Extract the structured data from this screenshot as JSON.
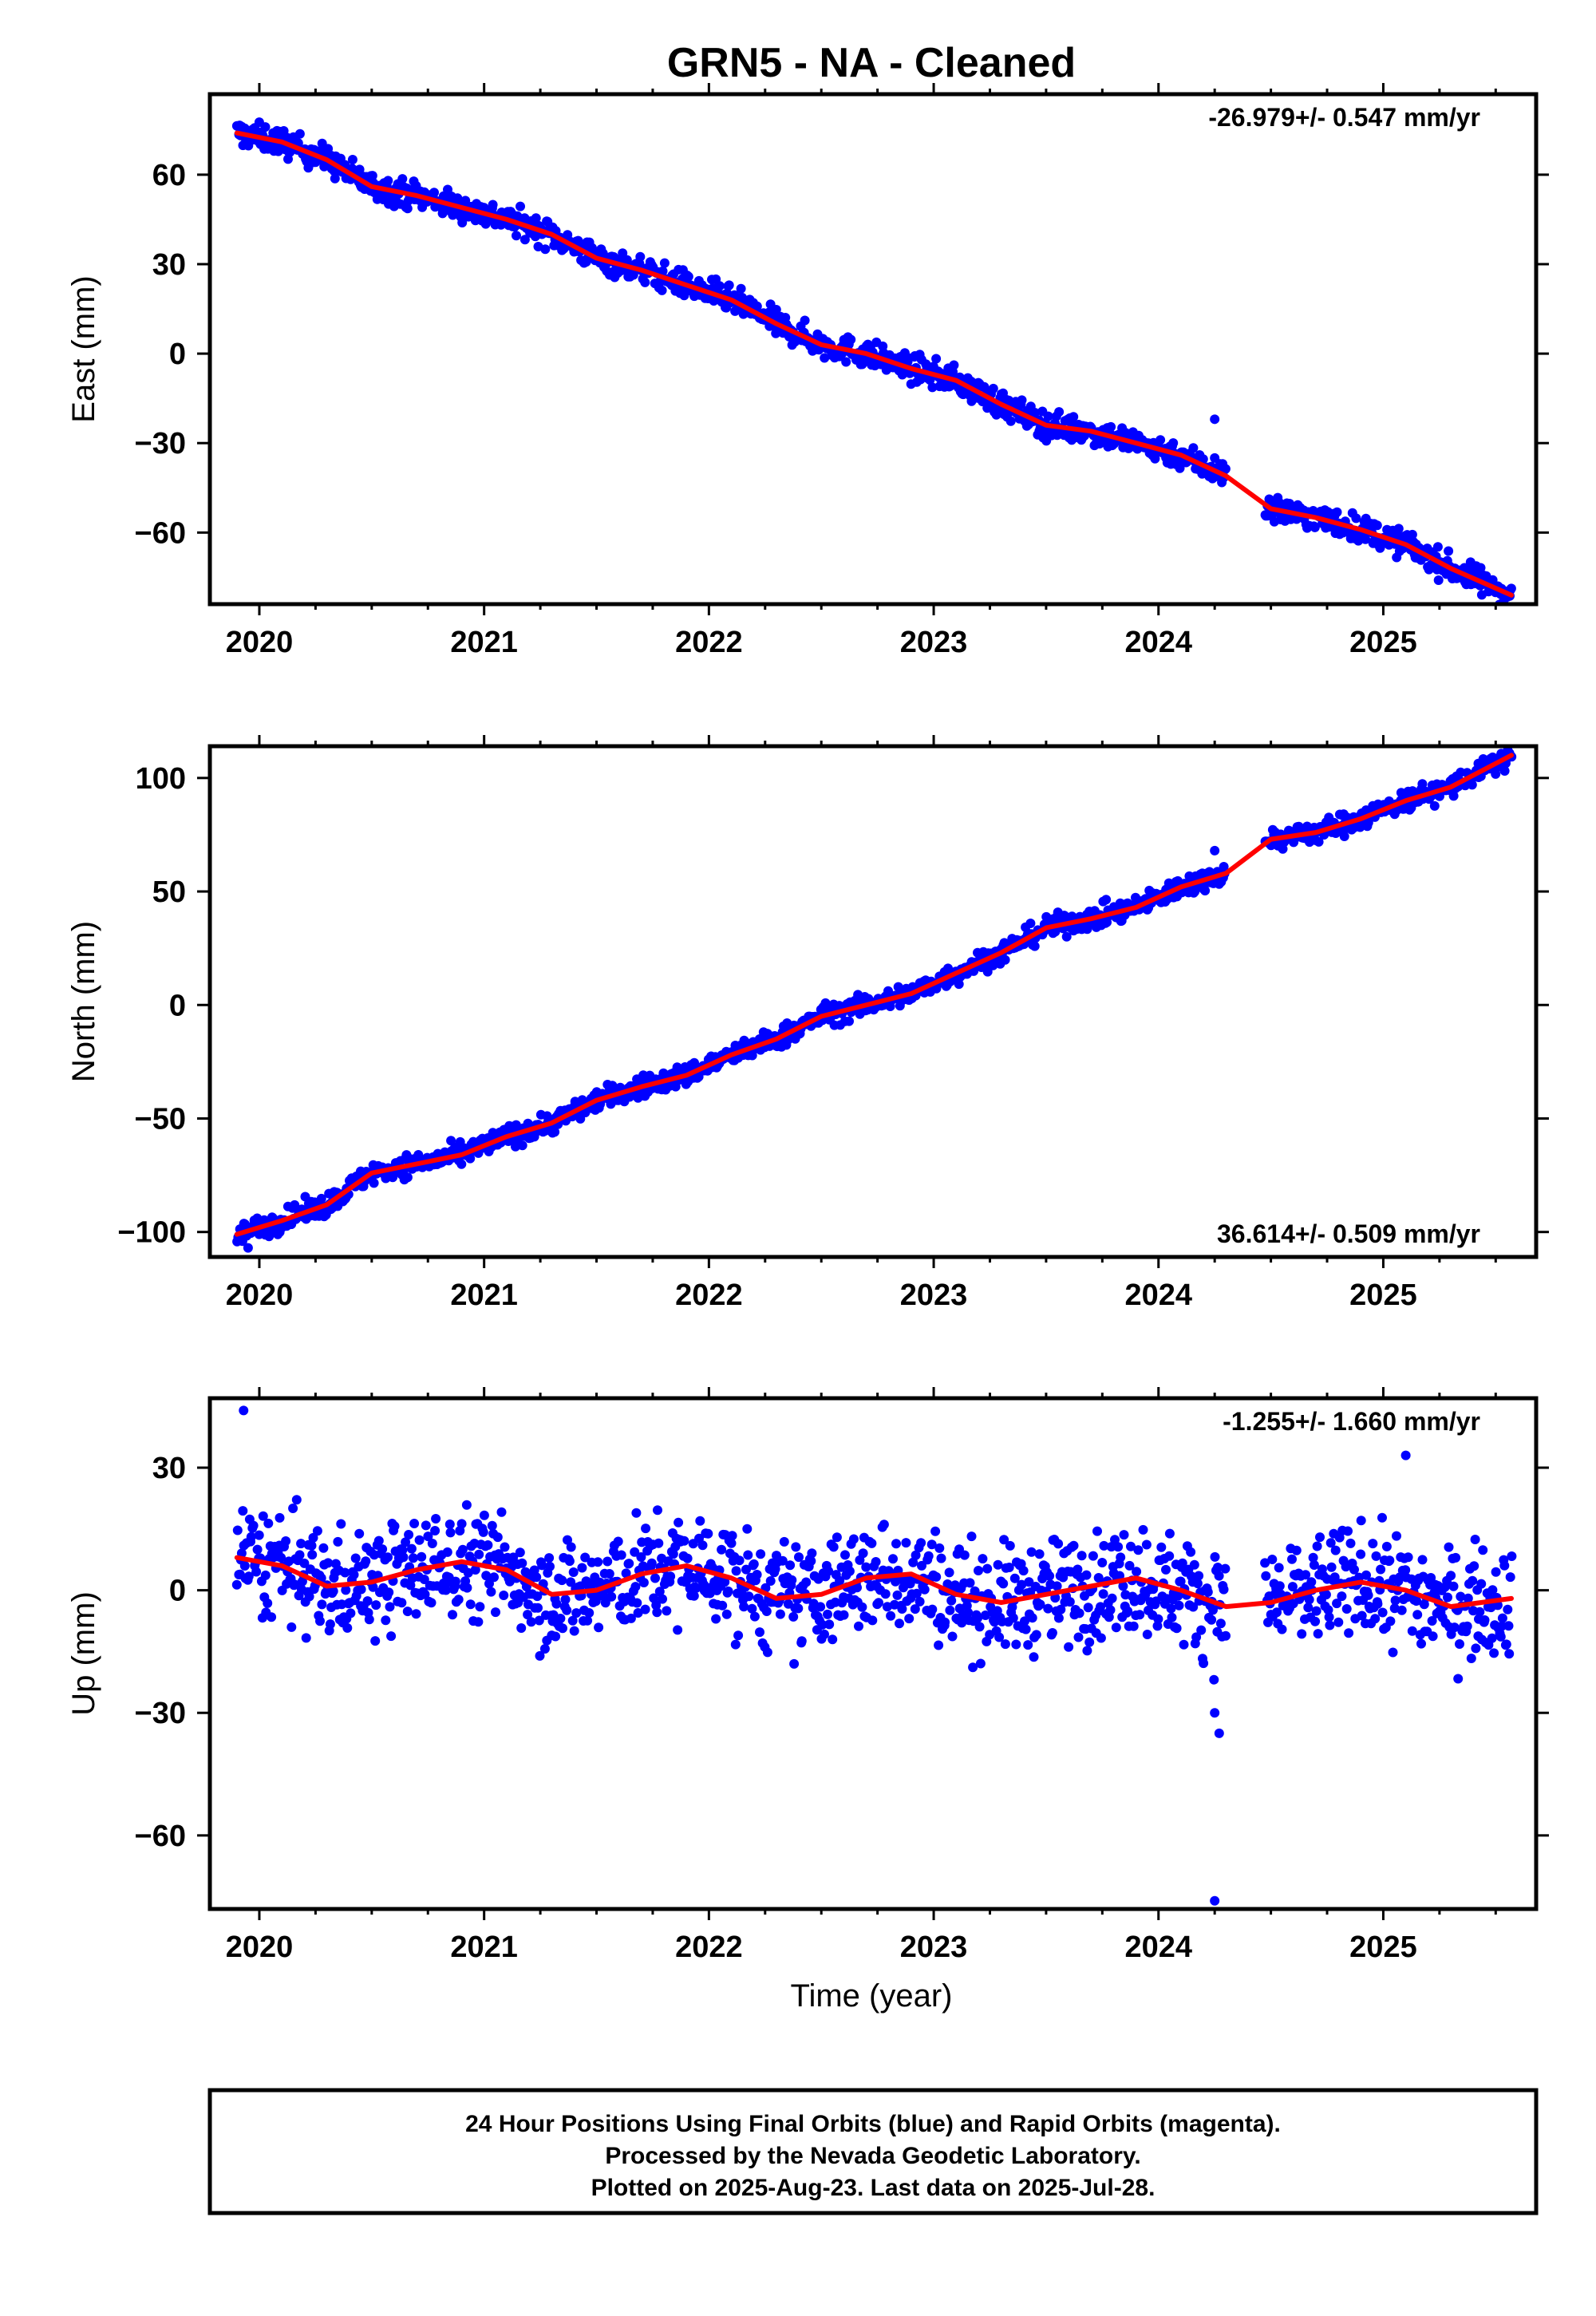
{
  "title": "GRN5  - NA - Cleaned",
  "xlabel": "Time (year)",
  "colors": {
    "points": "#0000ff",
    "trend": "#ff0000",
    "frame": "#000000"
  },
  "chart_data": [
    {
      "type": "scatter",
      "name": "east",
      "ylabel": "East (mm)",
      "rate_label": "-26.979+/- 0.547 mm/yr",
      "rate_position": "top-right",
      "xlim": [
        2019.78,
        2025.68
      ],
      "ylim": [
        -84,
        87
      ],
      "x_ticks": [
        "2020",
        "2021",
        "2022",
        "2023",
        "2024",
        "2025"
      ],
      "y_ticks": [
        60,
        30,
        0,
        -30,
        -60
      ],
      "y_tick_labels": [
        "60",
        "30",
        "0",
        "−30",
        "−60"
      ],
      "trend": {
        "x": [
          2019.9,
          2020.1,
          2020.3,
          2020.5,
          2020.7,
          2020.9,
          2021.1,
          2021.3,
          2021.5,
          2021.7,
          2021.9,
          2022.1,
          2022.3,
          2022.5,
          2022.7,
          2022.9,
          2023.1,
          2023.3,
          2023.5,
          2023.7,
          2023.9,
          2024.1,
          2024.3,
          2024.5,
          2024.7,
          2024.9,
          2025.1,
          2025.3,
          2025.57
        ],
        "y": [
          74,
          71,
          65,
          56,
          53,
          49,
          45,
          40,
          32,
          28,
          23,
          18,
          10,
          3,
          0,
          -5,
          -9,
          -17,
          -24,
          -26,
          -30,
          -34,
          -41,
          -52,
          -55,
          -59,
          -64,
          -72,
          -81
        ]
      },
      "scatter": {
        "x0": 2019.9,
        "x1": 2025.57,
        "spread": 3.2,
        "outliers": [
          [
            2024.25,
            -22
          ],
          [
            2024.25,
            -35
          ]
        ]
      }
    },
    {
      "type": "scatter",
      "name": "north",
      "ylabel": "North (mm)",
      "rate_label": "36.614+/- 0.509 mm/yr",
      "rate_position": "bottom-right",
      "xlim": [
        2019.78,
        2025.68
      ],
      "ylim": [
        -111,
        114
      ],
      "x_ticks": [
        "2020",
        "2021",
        "2022",
        "2023",
        "2024",
        "2025"
      ],
      "y_ticks": [
        100,
        50,
        0,
        -50,
        -100
      ],
      "y_tick_labels": [
        "100",
        "50",
        "0",
        "−50",
        "−100"
      ],
      "trend": {
        "x": [
          2019.9,
          2020.1,
          2020.3,
          2020.5,
          2020.7,
          2020.9,
          2021.1,
          2021.3,
          2021.5,
          2021.7,
          2021.9,
          2022.1,
          2022.3,
          2022.5,
          2022.7,
          2022.9,
          2023.1,
          2023.3,
          2023.5,
          2023.7,
          2023.9,
          2024.1,
          2024.3,
          2024.5,
          2024.7,
          2024.9,
          2025.1,
          2025.3,
          2025.57
        ],
        "y": [
          -101,
          -95,
          -88,
          -74,
          -70,
          -66,
          -58,
          -52,
          -42,
          -36,
          -31,
          -22,
          -15,
          -5,
          0,
          5,
          14,
          23,
          34,
          38,
          43,
          52,
          58,
          73,
          76,
          82,
          90,
          96,
          110
        ]
      },
      "scatter": {
        "x0": 2019.9,
        "x1": 2025.57,
        "spread": 3.4,
        "outliers": [
          [
            2024.25,
            68
          ],
          [
            2019.95,
            -107
          ]
        ]
      }
    },
    {
      "type": "scatter",
      "name": "up",
      "ylabel": "Up (mm)",
      "rate_label": "-1.255+/- 1.660 mm/yr",
      "rate_position": "top-right",
      "xlim": [
        2019.78,
        2025.68
      ],
      "ylim": [
        -78,
        47
      ],
      "x_ticks": [
        "2020",
        "2021",
        "2022",
        "2023",
        "2024",
        "2025"
      ],
      "y_ticks": [
        30,
        0,
        -30,
        -60
      ],
      "y_tick_labels": [
        "30",
        "0",
        "−30",
        "−60"
      ],
      "trend": {
        "x": [
          2019.9,
          2020.1,
          2020.3,
          2020.5,
          2020.7,
          2020.9,
          2021.1,
          2021.3,
          2021.5,
          2021.7,
          2021.9,
          2022.1,
          2022.3,
          2022.5,
          2022.7,
          2022.9,
          2023.1,
          2023.3,
          2023.5,
          2023.7,
          2023.9,
          2024.1,
          2024.3,
          2024.5,
          2024.7,
          2024.9,
          2025.1,
          2025.3,
          2025.57
        ],
        "y": [
          8,
          6,
          1,
          2,
          5,
          7,
          5,
          -1,
          0,
          4,
          6,
          3,
          -2,
          -1,
          3,
          4,
          -1,
          -3,
          -1,
          1,
          3,
          0,
          -4,
          -3,
          0,
          2,
          0,
          -4,
          -2
        ]
      },
      "scatter": {
        "x0": 2019.9,
        "x1": 2025.57,
        "spread": 9.5,
        "outliers": [
          [
            2019.93,
            44
          ],
          [
            2025.1,
            33
          ],
          [
            2024.25,
            -30
          ],
          [
            2024.27,
            -35
          ],
          [
            2024.25,
            -76
          ]
        ]
      }
    }
  ],
  "footer": {
    "lines": [
      "24 Hour Positions Using Final Orbits (blue) and Rapid Orbits (magenta).",
      "Processed by the Nevada Geodetic Laboratory.",
      "Plotted on 2025-Aug-23. Last data on 2025-Jul-28."
    ]
  }
}
